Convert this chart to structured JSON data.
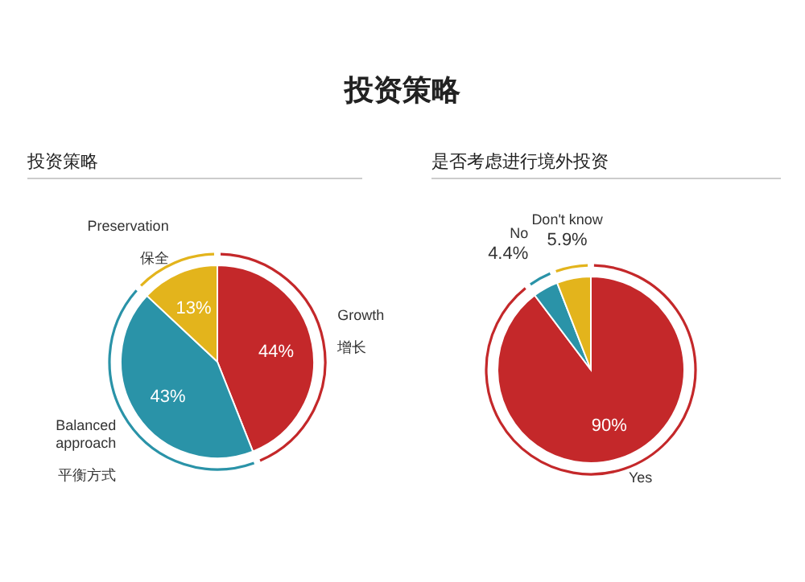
{
  "chart_data": [
    {
      "type": "pie",
      "title": "投资策略",
      "subtitle": "投资策略",
      "categories": [
        "Growth\n增长",
        "Balanced\napproach\n平衡方式",
        "Preservation\n保全"
      ],
      "values": [
        44,
        43,
        13
      ],
      "colors": [
        "#c4282a",
        "#2a93a8",
        "#e3b41c"
      ],
      "value_labels": [
        "44%",
        "43%",
        "13%"
      ]
    },
    {
      "type": "pie",
      "subtitle": "是否考虑进行境外投资",
      "categories": [
        "Yes",
        "No",
        "Don't know"
      ],
      "values": [
        90,
        4.4,
        5.9
      ],
      "colors": [
        "#c4282a",
        "#2a93a8",
        "#e3b41c"
      ],
      "value_labels": [
        "90%",
        "4.4%",
        "5.9%"
      ]
    }
  ]
}
